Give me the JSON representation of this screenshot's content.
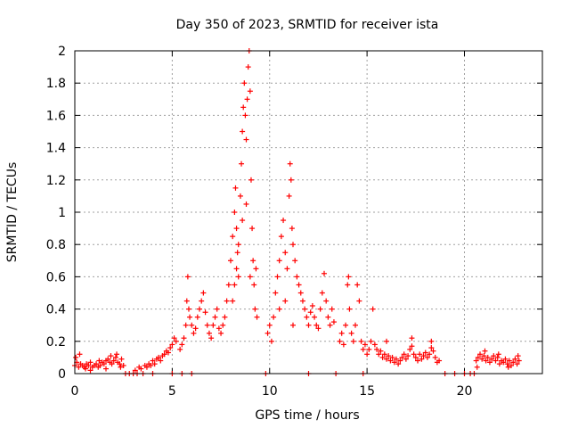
{
  "chart_data": {
    "type": "scatter",
    "title": "Day 350 of 2023, SRMTID for receiver ista",
    "xlabel": "GPS time / hours",
    "ylabel": "SRMTID / TECUs",
    "xlim": [
      0,
      24
    ],
    "ylim": [
      0,
      2
    ],
    "xticks": [
      0,
      5,
      10,
      15,
      20
    ],
    "xtick_labels": [
      "0",
      "5",
      "10",
      "15",
      "20"
    ],
    "yticks": [
      0,
      0.2,
      0.4,
      0.6,
      0.8,
      1,
      1.2,
      1.4,
      1.6,
      1.8,
      2
    ],
    "ytick_labels": [
      "0",
      "0.2",
      "0.4",
      "0.6",
      "0.8",
      "1",
      "1.2",
      "1.4",
      "1.6",
      "1.8",
      "2"
    ],
    "grid": true,
    "marker": "+",
    "marker_color": "#ff0000",
    "series": [
      {
        "name": "ista",
        "points": [
          [
            0.0,
            0.05
          ],
          [
            0.1,
            0.07
          ],
          [
            0.2,
            0.04
          ],
          [
            0.3,
            0.06
          ],
          [
            0.4,
            0.05
          ],
          [
            0.5,
            0.04
          ],
          [
            0.6,
            0.06
          ],
          [
            0.7,
            0.05
          ],
          [
            0.8,
            0.07
          ],
          [
            0.9,
            0.04
          ],
          [
            1.0,
            0.05
          ],
          [
            1.1,
            0.06
          ],
          [
            1.2,
            0.04
          ],
          [
            1.3,
            0.05
          ],
          [
            1.4,
            0.07
          ],
          [
            1.5,
            0.06
          ],
          [
            1.6,
            0.08
          ],
          [
            1.7,
            0.09
          ],
          [
            1.8,
            0.07
          ],
          [
            1.9,
            0.06
          ],
          [
            2.0,
            0.08
          ],
          [
            2.1,
            0.1
          ],
          [
            2.2,
            0.07
          ],
          [
            2.3,
            0.06
          ],
          [
            2.4,
            0.09
          ],
          [
            2.5,
            0.05
          ],
          [
            0.05,
            0.1
          ],
          [
            0.25,
            0.12
          ],
          [
            0.55,
            0.03
          ],
          [
            1.25,
            0.08
          ],
          [
            1.85,
            0.11
          ],
          [
            2.15,
            0.12
          ],
          [
            2.35,
            0.04
          ],
          [
            0.8,
            0.02
          ],
          [
            1.6,
            0.03
          ],
          [
            2.6,
            0.0
          ],
          [
            2.8,
            0.0
          ],
          [
            3.0,
            0.0
          ],
          [
            3.2,
            0.0
          ],
          [
            3.5,
            0.0
          ],
          [
            4.0,
            0.0
          ],
          [
            5.0,
            0.0
          ],
          [
            5.5,
            0.0
          ],
          [
            6.0,
            0.0
          ],
          [
            9.8,
            0.0
          ],
          [
            12.0,
            0.0
          ],
          [
            13.4,
            0.0
          ],
          [
            14.8,
            0.0
          ],
          [
            19.0,
            0.0
          ],
          [
            19.5,
            0.0
          ],
          [
            20.0,
            0.0
          ],
          [
            20.3,
            0.0
          ],
          [
            20.5,
            0.0
          ],
          [
            3.1,
            0.02
          ],
          [
            3.3,
            0.04
          ],
          [
            3.4,
            0.03
          ],
          [
            3.6,
            0.05
          ],
          [
            3.7,
            0.04
          ],
          [
            3.8,
            0.06
          ],
          [
            3.9,
            0.05
          ],
          [
            4.0,
            0.08
          ],
          [
            4.1,
            0.06
          ],
          [
            4.2,
            0.09
          ],
          [
            4.3,
            0.1
          ],
          [
            4.4,
            0.08
          ],
          [
            4.5,
            0.11
          ],
          [
            4.6,
            0.12
          ],
          [
            4.7,
            0.14
          ],
          [
            4.8,
            0.13
          ],
          [
            4.9,
            0.16
          ],
          [
            5.0,
            0.18
          ],
          [
            5.1,
            0.22
          ],
          [
            5.2,
            0.2
          ],
          [
            5.4,
            0.15
          ],
          [
            5.5,
            0.18
          ],
          [
            5.6,
            0.22
          ],
          [
            5.7,
            0.3
          ],
          [
            5.75,
            0.45
          ],
          [
            5.8,
            0.6
          ],
          [
            5.85,
            0.4
          ],
          [
            5.9,
            0.35
          ],
          [
            6.0,
            0.3
          ],
          [
            6.1,
            0.25
          ],
          [
            6.2,
            0.28
          ],
          [
            6.3,
            0.35
          ],
          [
            6.4,
            0.4
          ],
          [
            6.5,
            0.45
          ],
          [
            6.6,
            0.5
          ],
          [
            6.7,
            0.38
          ],
          [
            6.8,
            0.3
          ],
          [
            6.9,
            0.25
          ],
          [
            7.0,
            0.22
          ],
          [
            7.1,
            0.3
          ],
          [
            7.2,
            0.35
          ],
          [
            7.3,
            0.4
          ],
          [
            7.4,
            0.28
          ],
          [
            7.5,
            0.25
          ],
          [
            7.6,
            0.3
          ],
          [
            7.7,
            0.35
          ],
          [
            7.8,
            0.45
          ],
          [
            7.9,
            0.55
          ],
          [
            8.0,
            0.7
          ],
          [
            8.1,
            0.85
          ],
          [
            8.2,
            1.0
          ],
          [
            8.25,
            1.15
          ],
          [
            8.3,
            0.9
          ],
          [
            8.35,
            0.75
          ],
          [
            8.4,
            0.6
          ],
          [
            8.5,
            1.1
          ],
          [
            8.55,
            1.3
          ],
          [
            8.6,
            1.5
          ],
          [
            8.65,
            1.65
          ],
          [
            8.7,
            1.8
          ],
          [
            8.75,
            1.6
          ],
          [
            8.8,
            1.45
          ],
          [
            8.85,
            1.7
          ],
          [
            8.9,
            1.9
          ],
          [
            8.95,
            2.0
          ],
          [
            9.0,
            1.75
          ],
          [
            9.05,
            1.2
          ],
          [
            9.1,
            0.9
          ],
          [
            9.15,
            0.7
          ],
          [
            9.2,
            0.55
          ],
          [
            9.25,
            0.4
          ],
          [
            9.3,
            0.65
          ],
          [
            9.35,
            0.35
          ],
          [
            8.2,
            0.55
          ],
          [
            8.4,
            0.8
          ],
          [
            8.6,
            0.95
          ],
          [
            8.8,
            1.05
          ],
          [
            9.0,
            0.6
          ],
          [
            8.1,
            0.45
          ],
          [
            8.3,
            0.65
          ],
          [
            9.9,
            0.25
          ],
          [
            10.0,
            0.3
          ],
          [
            10.1,
            0.2
          ],
          [
            10.2,
            0.35
          ],
          [
            10.3,
            0.5
          ],
          [
            10.4,
            0.6
          ],
          [
            10.5,
            0.7
          ],
          [
            10.6,
            0.85
          ],
          [
            10.7,
            0.95
          ],
          [
            10.8,
            0.75
          ],
          [
            10.9,
            0.65
          ],
          [
            11.0,
            1.1
          ],
          [
            11.05,
            1.3
          ],
          [
            11.1,
            1.2
          ],
          [
            11.15,
            0.9
          ],
          [
            11.2,
            0.8
          ],
          [
            11.3,
            0.7
          ],
          [
            11.4,
            0.6
          ],
          [
            11.5,
            0.55
          ],
          [
            11.6,
            0.5
          ],
          [
            11.7,
            0.45
          ],
          [
            11.8,
            0.4
          ],
          [
            11.9,
            0.35
          ],
          [
            12.0,
            0.3
          ],
          [
            12.1,
            0.38
          ],
          [
            12.2,
            0.42
          ],
          [
            12.3,
            0.35
          ],
          [
            12.4,
            0.3
          ],
          [
            12.5,
            0.28
          ],
          [
            12.6,
            0.4
          ],
          [
            12.7,
            0.5
          ],
          [
            12.8,
            0.62
          ],
          [
            12.9,
            0.45
          ],
          [
            13.0,
            0.35
          ],
          [
            13.1,
            0.3
          ],
          [
            13.2,
            0.4
          ],
          [
            13.3,
            0.32
          ],
          [
            10.5,
            0.4
          ],
          [
            10.8,
            0.45
          ],
          [
            11.2,
            0.3
          ],
          [
            13.6,
            0.2
          ],
          [
            13.7,
            0.25
          ],
          [
            13.8,
            0.18
          ],
          [
            13.9,
            0.3
          ],
          [
            14.0,
            0.55
          ],
          [
            14.05,
            0.6
          ],
          [
            14.1,
            0.4
          ],
          [
            14.2,
            0.25
          ],
          [
            14.3,
            0.2
          ],
          [
            14.4,
            0.3
          ],
          [
            14.5,
            0.55
          ],
          [
            14.6,
            0.45
          ],
          [
            14.7,
            0.2
          ],
          [
            14.8,
            0.15
          ],
          [
            14.9,
            0.18
          ],
          [
            15.0,
            0.12
          ],
          [
            15.1,
            0.15
          ],
          [
            15.2,
            0.2
          ],
          [
            15.3,
            0.4
          ],
          [
            15.4,
            0.18
          ],
          [
            15.5,
            0.15
          ],
          [
            15.6,
            0.12
          ],
          [
            15.7,
            0.14
          ],
          [
            15.8,
            0.1
          ],
          [
            15.9,
            0.12
          ],
          [
            16.0,
            0.09
          ],
          [
            16.1,
            0.11
          ],
          [
            16.2,
            0.08
          ],
          [
            16.3,
            0.1
          ],
          [
            16.4,
            0.07
          ],
          [
            16.5,
            0.09
          ],
          [
            16.6,
            0.06
          ],
          [
            16.7,
            0.08
          ],
          [
            16.8,
            0.1
          ],
          [
            16.9,
            0.12
          ],
          [
            17.0,
            0.09
          ],
          [
            17.1,
            0.11
          ],
          [
            17.2,
            0.15
          ],
          [
            17.3,
            0.17
          ],
          [
            17.4,
            0.12
          ],
          [
            17.5,
            0.1
          ],
          [
            17.6,
            0.08
          ],
          [
            17.7,
            0.12
          ],
          [
            17.8,
            0.09
          ],
          [
            17.9,
            0.11
          ],
          [
            18.0,
            0.13
          ],
          [
            18.1,
            0.1
          ],
          [
            18.2,
            0.12
          ],
          [
            18.3,
            0.16
          ],
          [
            18.4,
            0.14
          ],
          [
            18.5,
            0.1
          ],
          [
            18.6,
            0.07
          ],
          [
            18.7,
            0.08
          ],
          [
            16.0,
            0.2
          ],
          [
            17.3,
            0.22
          ],
          [
            18.3,
            0.2
          ],
          [
            20.6,
            0.08
          ],
          [
            20.7,
            0.1
          ],
          [
            20.8,
            0.12
          ],
          [
            20.9,
            0.09
          ],
          [
            21.0,
            0.11
          ],
          [
            21.1,
            0.08
          ],
          [
            21.2,
            0.1
          ],
          [
            21.3,
            0.07
          ],
          [
            21.4,
            0.09
          ],
          [
            21.5,
            0.11
          ],
          [
            21.6,
            0.08
          ],
          [
            21.7,
            0.1
          ],
          [
            21.8,
            0.06
          ],
          [
            21.9,
            0.08
          ],
          [
            22.0,
            0.07
          ],
          [
            22.1,
            0.09
          ],
          [
            22.2,
            0.06
          ],
          [
            22.3,
            0.08
          ],
          [
            22.4,
            0.05
          ],
          [
            22.5,
            0.07
          ],
          [
            22.6,
            0.09
          ],
          [
            22.7,
            0.06
          ],
          [
            22.8,
            0.08
          ],
          [
            20.65,
            0.04
          ],
          [
            21.05,
            0.14
          ],
          [
            21.75,
            0.12
          ],
          [
            22.25,
            0.04
          ],
          [
            22.75,
            0.11
          ]
        ]
      }
    ]
  }
}
